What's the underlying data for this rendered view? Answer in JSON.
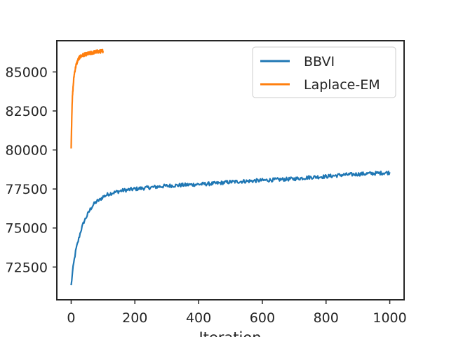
{
  "chart_data": {
    "type": "line",
    "title": "",
    "xlabel": "Iteration",
    "ylabel": "",
    "xlim": [
      -45,
      1045
    ],
    "ylim": [
      70400,
      87000
    ],
    "xticks": [
      0,
      200,
      400,
      600,
      800,
      1000
    ],
    "yticks": [
      72500,
      75000,
      77500,
      80000,
      82500,
      85000
    ],
    "grid": false,
    "legend_position": "top-right",
    "series": [
      {
        "name": "BBVI",
        "color": "#1f77b4",
        "x": [
          0,
          5,
          10,
          15,
          20,
          25,
          30,
          40,
          50,
          60,
          70,
          80,
          90,
          100,
          120,
          140,
          160,
          180,
          200,
          250,
          300,
          350,
          400,
          450,
          500,
          550,
          600,
          650,
          700,
          750,
          800,
          850,
          900,
          950,
          1000
        ],
        "y": [
          71300,
          72300,
          73000,
          73600,
          74000,
          74400,
          74800,
          75400,
          75800,
          76200,
          76500,
          76700,
          76800,
          77000,
          77200,
          77300,
          77400,
          77450,
          77500,
          77600,
          77700,
          77750,
          77800,
          77850,
          77950,
          78000,
          78050,
          78100,
          78150,
          78250,
          78300,
          78400,
          78450,
          78500,
          78550
        ],
        "noise": 120
      },
      {
        "name": "Laplace-EM",
        "color": "#ff7f0e",
        "x": [
          0,
          2,
          4,
          6,
          8,
          10,
          15,
          20,
          25,
          30,
          40,
          50,
          60,
          70,
          80,
          90,
          100
        ],
        "y": [
          80200,
          82200,
          83400,
          84000,
          84500,
          84900,
          85400,
          85700,
          85900,
          86000,
          86100,
          86150,
          86200,
          86250,
          86300,
          86300,
          86350
        ],
        "noise": 110
      }
    ]
  }
}
